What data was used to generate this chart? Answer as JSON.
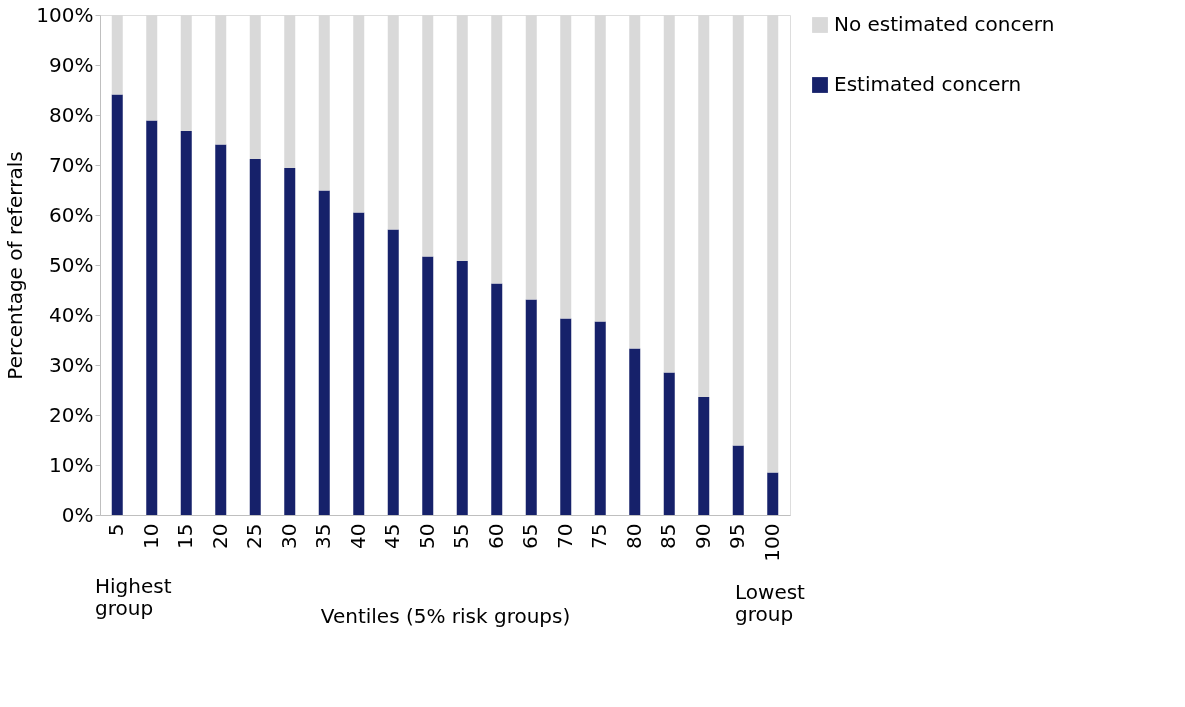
{
  "chart_data": {
    "type": "bar",
    "stacked": true,
    "xlabel": "Ventiles (5% risk groups)",
    "ylabel": "Percentage of referrals",
    "categories": [
      "5",
      "10",
      "15",
      "20",
      "25",
      "30",
      "35",
      "40",
      "45",
      "50",
      "55",
      "60",
      "65",
      "70",
      "75",
      "80",
      "85",
      "90",
      "95",
      "100"
    ],
    "series": [
      {
        "name": "Estimated concern",
        "color": "#16216a",
        "values": [
          84.1,
          78.9,
          76.8,
          74.1,
          71.2,
          69.4,
          64.9,
          60.5,
          57.1,
          51.7,
          50.8,
          46.3,
          43.1,
          39.3,
          38.7,
          33.3,
          28.5,
          23.6,
          13.9,
          8.5
        ]
      },
      {
        "name": "No estimated concern",
        "color": "#d9d9d9",
        "values": [
          15.9,
          21.1,
          23.2,
          25.9,
          28.8,
          30.6,
          35.1,
          39.5,
          42.9,
          48.3,
          49.2,
          53.7,
          56.9,
          60.7,
          61.3,
          66.7,
          71.5,
          76.4,
          86.1,
          91.5
        ]
      }
    ],
    "ylim": [
      0,
      100
    ],
    "yticks": [
      {
        "value": 0,
        "label": "0%"
      },
      {
        "value": 10,
        "label": "10%"
      },
      {
        "value": 20,
        "label": "20%"
      },
      {
        "value": 30,
        "label": "30%"
      },
      {
        "value": 40,
        "label": "40%"
      },
      {
        "value": 50,
        "label": "50%"
      },
      {
        "value": 60,
        "label": "60%"
      },
      {
        "value": 70,
        "label": "70%"
      },
      {
        "value": 80,
        "label": "80%"
      },
      {
        "value": 90,
        "label": "90%"
      },
      {
        "value": 100,
        "label": "100%"
      }
    ],
    "grid": false,
    "legend": "right",
    "annotations": [
      "Highest group",
      "Lowest group"
    ]
  }
}
